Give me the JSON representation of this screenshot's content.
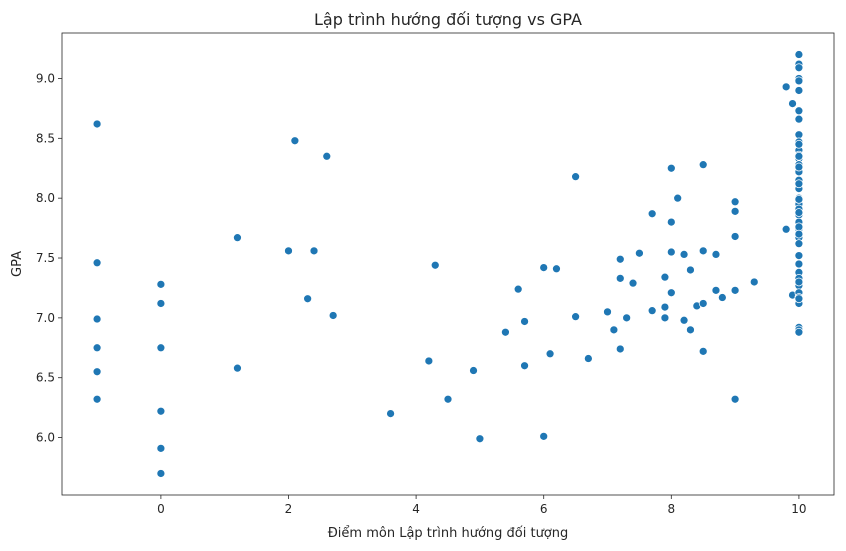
{
  "chart_data": {
    "type": "scatter",
    "title": "Lập trình hướng đối tượng vs GPA",
    "xlabel": "Điểm môn Lập trình hướng đối tượng",
    "ylabel": "GPA",
    "xlim": [
      -1.55,
      10.55
    ],
    "ylim": [
      5.52,
      9.38
    ],
    "xticks": [
      0,
      2,
      4,
      6,
      8,
      10
    ],
    "yticks": [
      6.0,
      6.5,
      7.0,
      7.5,
      8.0,
      8.5,
      9.0
    ],
    "xtick_labels": [
      "0",
      "2",
      "4",
      "6",
      "8",
      "10"
    ],
    "ytick_labels": [
      "6.0",
      "6.5",
      "7.0",
      "7.5",
      "8.0",
      "8.5",
      "9.0"
    ],
    "grid": false,
    "color": "#1f77b4",
    "x": [
      -1,
      -1,
      -1,
      -1,
      -1,
      -1,
      0,
      0,
      0,
      0,
      0,
      0,
      1.2,
      1.2,
      2.0,
      2.1,
      2.3,
      2.4,
      2.6,
      2.7,
      3.6,
      4.2,
      4.3,
      4.5,
      4.9,
      5.0,
      5.4,
      5.6,
      5.7,
      5.7,
      6.0,
      6.0,
      6.1,
      6.2,
      6.5,
      6.5,
      6.7,
      7.0,
      7.1,
      7.2,
      7.2,
      7.2,
      7.3,
      7.4,
      7.5,
      7.7,
      7.7,
      7.9,
      7.9,
      7.9,
      8.0,
      8.0,
      8.0,
      8.0,
      8.1,
      8.2,
      8.2,
      8.3,
      8.3,
      8.4,
      8.5,
      8.5,
      8.5,
      8.5,
      8.7,
      8.7,
      8.8,
      9.0,
      9.0,
      9.0,
      9.0,
      9.0,
      9.3,
      9.8,
      9.8,
      9.9,
      9.9,
      10,
      10,
      10,
      10,
      10,
      10,
      10,
      10,
      10,
      10,
      10,
      10,
      10,
      10,
      10,
      10,
      10,
      10,
      10,
      10,
      10,
      10,
      10,
      10,
      10,
      10,
      10,
      10,
      10,
      10,
      10,
      10,
      10,
      10,
      10,
      10,
      10,
      10,
      10,
      10,
      10,
      10,
      10,
      10,
      10,
      10
    ],
    "y": [
      8.62,
      7.46,
      6.99,
      6.75,
      6.55,
      6.32,
      7.28,
      7.12,
      6.75,
      6.22,
      5.91,
      5.7,
      7.67,
      6.58,
      7.56,
      8.48,
      7.16,
      7.56,
      8.35,
      7.02,
      6.2,
      6.64,
      7.44,
      6.32,
      6.56,
      5.99,
      6.88,
      7.24,
      6.97,
      6.6,
      7.42,
      6.01,
      6.7,
      7.41,
      8.18,
      7.01,
      6.66,
      7.05,
      6.9,
      7.49,
      7.33,
      6.74,
      7.0,
      7.29,
      7.54,
      7.87,
      7.06,
      7.34,
      7.09,
      7.0,
      8.25,
      7.8,
      7.55,
      7.21,
      8.0,
      7.53,
      6.98,
      7.4,
      6.9,
      7.1,
      8.28,
      7.56,
      7.12,
      6.72,
      7.53,
      7.23,
      7.17,
      7.97,
      7.89,
      7.68,
      7.23,
      6.32,
      7.3,
      8.93,
      7.74,
      8.79,
      7.19,
      9.2,
      9.12,
      9.09,
      9.0,
      8.98,
      8.9,
      8.73,
      8.66,
      8.53,
      8.47,
      8.4,
      8.36,
      8.33,
      8.28,
      8.22,
      8.15,
      8.08,
      8.0,
      7.95,
      7.91,
      7.86,
      7.8,
      7.74,
      7.67,
      7.62,
      7.52,
      7.38,
      7.33,
      7.27,
      7.21,
      7.17,
      7.12,
      6.92,
      6.9,
      6.88,
      8.35,
      7.99,
      7.76,
      7.7,
      8.12,
      7.45,
      7.3,
      7.16,
      7.88,
      8.45,
      8.26
    ]
  }
}
